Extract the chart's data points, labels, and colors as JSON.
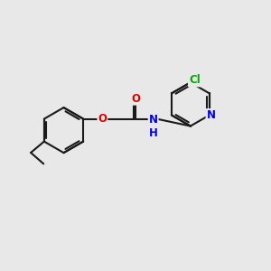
{
  "background_color": "#e8e8e8",
  "bond_color": "#1a1a1a",
  "bond_width": 1.5,
  "atom_colors": {
    "O": "#dd0000",
    "N": "#0000ee",
    "Cl": "#00aa00",
    "C": "#1a1a1a"
  },
  "font_size_atoms": 8.5,
  "font_size_cl": 8.5
}
